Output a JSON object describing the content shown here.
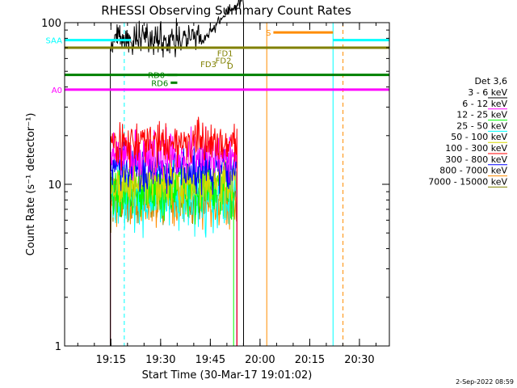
{
  "chart_data": {
    "type": "line",
    "title": "RHESSI Observing Summary Count Rates",
    "xlabel": "Start Time (30-Mar-17 19:01:02)",
    "ylabel": "Count Rate (s⁻¹ detector⁻¹)",
    "yscale": "log",
    "ylim": [
      1,
      100
    ],
    "y_ticks": [
      {
        "value": 1,
        "label": "1"
      },
      {
        "value": 10,
        "label": "10"
      },
      {
        "value": 100,
        "label": "100"
      }
    ],
    "x_range_minutes": [
      0,
      98
    ],
    "x_ticks": [
      {
        "minutes": 13.97,
        "label": "19:15"
      },
      {
        "minutes": 28.97,
        "label": "19:30"
      },
      {
        "minutes": 43.97,
        "label": "19:45"
      },
      {
        "minutes": 58.97,
        "label": "20:00"
      },
      {
        "minutes": 73.97,
        "label": "20:15"
      },
      {
        "minutes": 88.97,
        "label": "20:30"
      }
    ],
    "legend_title": "Det 3,6",
    "legend_position": "right",
    "series": [
      {
        "name": "3 - 6 keV",
        "color": "#000000",
        "base": 80,
        "noise": 0.05,
        "x_end": 54
      },
      {
        "name": "6 - 12 keV",
        "color": "#ff00ff",
        "base": 15,
        "noise": 0.07,
        "x_end": 52
      },
      {
        "name": "12 - 25 keV",
        "color": "#00ff00",
        "base": 9.2,
        "noise": 0.09,
        "x_end": 51
      },
      {
        "name": "25 - 50 keV",
        "color": "#00ffff",
        "base": 8.2,
        "noise": 0.1,
        "x_end": 52
      },
      {
        "name": "50 - 100 keV",
        "color": "#d8d800",
        "base": 10,
        "noise": 0.08,
        "x_end": 52
      },
      {
        "name": "100 - 300 keV",
        "color": "#ff0000",
        "base": 18,
        "noise": 0.06,
        "x_end": 52
      },
      {
        "name": "300 - 800 keV",
        "color": "#0000ff",
        "base": 12.5,
        "noise": 0.07,
        "x_end": 52
      },
      {
        "name": "800 - 7000 keV",
        "color": "#ff8c00",
        "base": 7.8,
        "noise": 0.08,
        "x_end": 52
      },
      {
        "name": "7000 - 15000 keV",
        "color": "#808000",
        "base": 8.4,
        "noise": 0.08,
        "x_end": 52
      }
    ],
    "flag_bars": [
      {
        "label": "SAA",
        "y": 78,
        "x0": 0,
        "x1": 20,
        "color": "#00ffff"
      },
      {
        "label": "",
        "y": 78,
        "x0": 81,
        "x1": 98,
        "color": "#00ffff"
      },
      {
        "label": "S",
        "y": 87,
        "x0": 63,
        "x1": 81,
        "color": "#ff8c00"
      },
      {
        "label": "",
        "y": 70,
        "x0": 0,
        "x1": 98,
        "color": "#808000"
      },
      {
        "label": "A0",
        "y": 38.5,
        "x0": 0,
        "x1": 98,
        "color": "#ff00ff"
      },
      {
        "label": "",
        "y": 47.5,
        "x0": 0,
        "x1": 98,
        "color": "#008000"
      },
      {
        "label": "RD0",
        "y": 47.5,
        "x0": 31,
        "x1": 34,
        "color": "#008000"
      },
      {
        "label": "RD6",
        "y": 42.5,
        "x0": 32,
        "x1": 34,
        "color": "#008000"
      }
    ],
    "vlines": [
      {
        "x": 0,
        "color": "#00ffff",
        "style": "solid"
      },
      {
        "x": 18,
        "color": "#00ffff",
        "style": "dashed"
      },
      {
        "x": 81,
        "color": "#00ffff",
        "style": "solid"
      },
      {
        "x": 98,
        "color": "#00ffff",
        "style": "dashed"
      },
      {
        "x": 61,
        "color": "#ff8c00",
        "style": "solid"
      },
      {
        "x": 84,
        "color": "#ff8c00",
        "style": "dashed"
      }
    ],
    "annotations": [
      {
        "text": "FD1",
        "x": 46,
        "y": 62,
        "color": "#808000"
      },
      {
        "text": "FD2",
        "x": 45.5,
        "y": 56,
        "color": "#808000"
      },
      {
        "text": "FD3",
        "x": 41,
        "y": 53,
        "color": "#808000"
      },
      {
        "text": "D",
        "x": 49,
        "y": 52,
        "color": "#808000"
      }
    ],
    "footer_date": "2-Sep-2022 08:59"
  }
}
